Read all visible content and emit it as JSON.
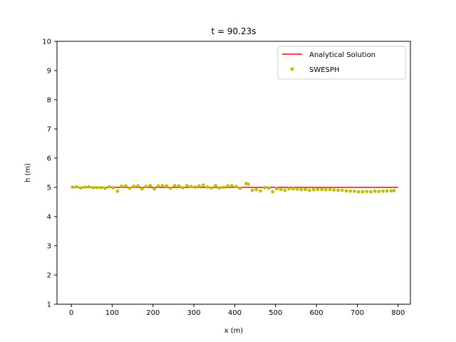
{
  "chart_data": {
    "type": "line",
    "title": "t = 90.23s",
    "xlabel": "x (m)",
    "ylabel": "h (m)",
    "xlim": [
      -35,
      830
    ],
    "ylim": [
      1,
      10
    ],
    "xticks": [
      0,
      100,
      200,
      300,
      400,
      500,
      600,
      700,
      800
    ],
    "yticks": [
      1,
      2,
      3,
      4,
      5,
      6,
      7,
      8,
      9,
      10
    ],
    "grid": false,
    "legend_position": "top-right",
    "series": [
      {
        "name": "Analytical Solution",
        "style": "line",
        "color": "#ff0000",
        "x": [
          0,
          800
        ],
        "y": [
          5.0,
          5.0
        ]
      },
      {
        "name": "SWESPH",
        "style": "scatter",
        "color": "#bfbf00",
        "x": [
          3,
          13,
          23,
          33,
          43,
          53,
          63,
          73,
          83,
          93,
          103,
          113,
          123,
          133,
          143,
          153,
          163,
          173,
          183,
          193,
          203,
          213,
          223,
          233,
          243,
          253,
          263,
          273,
          283,
          293,
          303,
          313,
          323,
          333,
          343,
          353,
          363,
          373,
          383,
          393,
          403,
          413,
          428,
          433,
          443,
          453,
          463,
          473,
          483,
          493,
          503,
          513,
          523,
          533,
          543,
          553,
          563,
          573,
          583,
          593,
          603,
          613,
          623,
          633,
          643,
          653,
          663,
          673,
          683,
          693,
          703,
          713,
          723,
          733,
          743,
          753,
          763,
          773,
          783,
          790
        ],
        "y": [
          5.01,
          5.02,
          4.98,
          5.01,
          5.02,
          4.99,
          4.99,
          4.99,
          4.97,
          5.02,
          4.99,
          4.87,
          5.04,
          5.05,
          4.97,
          5.04,
          5.05,
          4.95,
          5.03,
          5.06,
          4.95,
          5.05,
          5.06,
          5.05,
          4.97,
          5.06,
          5.05,
          4.99,
          5.06,
          5.03,
          5.01,
          5.05,
          5.08,
          5.01,
          4.98,
          5.06,
          4.98,
          5.0,
          5.05,
          5.06,
          5.03,
          4.97,
          5.13,
          5.11,
          4.9,
          4.92,
          4.88,
          4.99,
          4.97,
          4.85,
          4.95,
          4.93,
          4.9,
          4.95,
          4.95,
          4.94,
          4.92,
          4.93,
          4.9,
          4.92,
          4.93,
          4.93,
          4.92,
          4.93,
          4.91,
          4.9,
          4.9,
          4.88,
          4.87,
          4.87,
          4.85,
          4.85,
          4.86,
          4.85,
          4.87,
          4.86,
          4.87,
          4.88,
          4.88,
          4.89
        ]
      }
    ]
  }
}
